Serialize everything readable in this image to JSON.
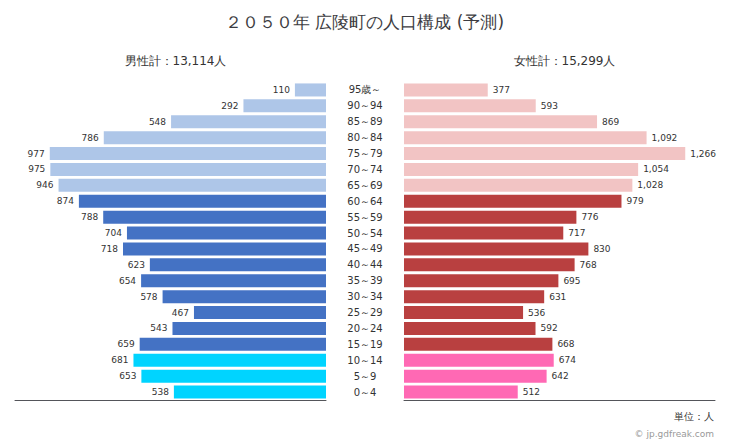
{
  "chart_data": {
    "type": "bar",
    "orientation": "horizontal",
    "title": "２０５０年 広陵町の人口構成 (予測)",
    "annotations": [
      "単位：人",
      "© jp.gdfreak.com"
    ],
    "categories": [
      "95歳～",
      "90～94",
      "85～89",
      "80～84",
      "75～79",
      "70～74",
      "65～69",
      "60～64",
      "55～59",
      "50～54",
      "45～49",
      "40～44",
      "35～39",
      "30～34",
      "25～29",
      "20～24",
      "15～19",
      "10～14",
      "5～9",
      "0～4"
    ],
    "series": [
      {
        "name": "男性計：13,114人",
        "values": [
          110,
          292,
          548,
          786,
          977,
          975,
          946,
          874,
          788,
          704,
          718,
          623,
          654,
          578,
          467,
          543,
          659,
          681,
          653,
          538
        ],
        "colors": [
          "#aec6e8",
          "#aec6e8",
          "#aec6e8",
          "#aec6e8",
          "#aec6e8",
          "#aec6e8",
          "#aec6e8",
          "#4472c4",
          "#4472c4",
          "#4472c4",
          "#4472c4",
          "#4472c4",
          "#4472c4",
          "#4472c4",
          "#4472c4",
          "#4472c4",
          "#4472c4",
          "#00d4ff",
          "#00d4ff",
          "#00d4ff"
        ],
        "xlim": [
          0,
          1100
        ]
      },
      {
        "name": "女性計：15,299人",
        "values": [
          377,
          593,
          869,
          1092,
          1266,
          1054,
          1028,
          979,
          776,
          717,
          830,
          768,
          695,
          631,
          536,
          592,
          668,
          674,
          642,
          512
        ],
        "value_labels": [
          "377",
          "593",
          "869",
          "1,092",
          "1,266",
          "1,054",
          "1,028",
          "979",
          "776",
          "717",
          "830",
          "768",
          "695",
          "631",
          "536",
          "592",
          "668",
          "674",
          "642",
          "512"
        ],
        "colors": [
          "#f2c4c4",
          "#f2c4c4",
          "#f2c4c4",
          "#f2c4c4",
          "#f2c4c4",
          "#f2c4c4",
          "#f2c4c4",
          "#b94040",
          "#b94040",
          "#b94040",
          "#b94040",
          "#b94040",
          "#b94040",
          "#b94040",
          "#b94040",
          "#b94040",
          "#b94040",
          "#ff69b4",
          "#ff69b4",
          "#ff69b4"
        ],
        "xlim": [
          0,
          1400
        ]
      }
    ],
    "data_labels": true,
    "tick_labels": "y",
    "grid": false
  }
}
